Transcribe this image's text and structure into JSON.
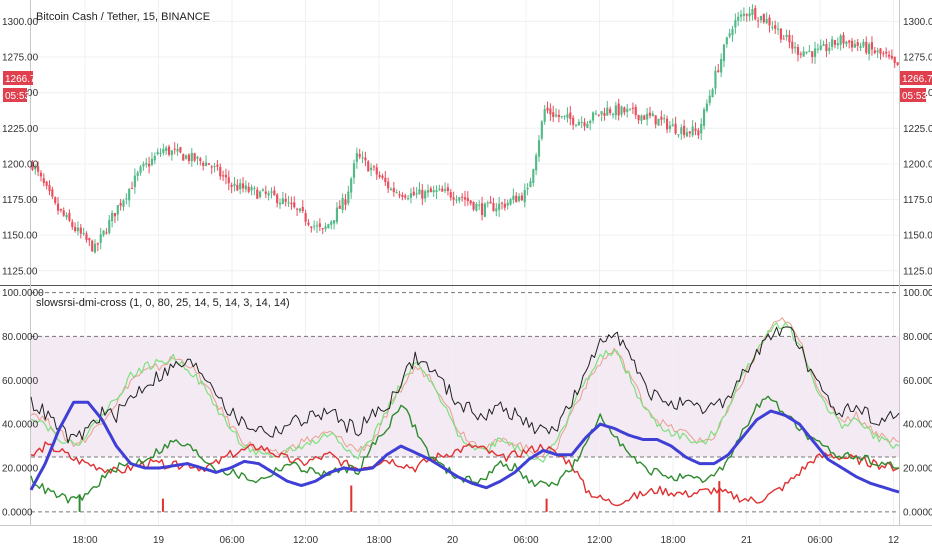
{
  "header": {
    "symbol_title": "Bitcoin Cash / Tether, 15, BINANCE"
  },
  "indicator": {
    "label": "slowsrsi-dmi-cross (1, 0, 80, 25, 14, 5, 14, 3, 14, 14)"
  },
  "price_tag": {
    "price": "1266.70",
    "countdown": "05:53"
  },
  "colors": {
    "up": "#53b987",
    "down": "#eb4d5c",
    "blue": "#3f3fd6",
    "green": "#2e8b2e",
    "red": "#e03030",
    "black": "#222222",
    "light_green": "#7fe07f",
    "light_red": "#e8a090",
    "tag": "#e0404e"
  },
  "time_axis": {
    "labels": [
      "18:00",
      "19",
      "06:00",
      "12:00",
      "18:00",
      "20",
      "06:00",
      "12:00",
      "18:00",
      "21",
      "06:00",
      "12"
    ]
  },
  "chart_data": [
    {
      "type": "candlestick",
      "ylim": [
        1115,
        1315
      ],
      "ticks": [
        "1125.00",
        "1150.00",
        "1175.00",
        "1200.00",
        "1225.00",
        "1250.00",
        "1275.00",
        "1300.00"
      ],
      "tick_values": [
        1125,
        1150,
        1175,
        1200,
        1225,
        1250,
        1275,
        1300
      ],
      "anchors": [
        {
          "t": 0,
          "p": 1200
        },
        {
          "t": 8,
          "p": 1170
        },
        {
          "t": 16,
          "p": 1152
        },
        {
          "t": 22,
          "p": 1140
        },
        {
          "t": 30,
          "p": 1170
        },
        {
          "t": 38,
          "p": 1195
        },
        {
          "t": 46,
          "p": 1210
        },
        {
          "t": 54,
          "p": 1205
        },
        {
          "t": 62,
          "p": 1200
        },
        {
          "t": 70,
          "p": 1185
        },
        {
          "t": 78,
          "p": 1180
        },
        {
          "t": 86,
          "p": 1176
        },
        {
          "t": 94,
          "p": 1165
        },
        {
          "t": 102,
          "p": 1152
        },
        {
          "t": 110,
          "p": 1175
        },
        {
          "t": 114,
          "p": 1205
        },
        {
          "t": 120,
          "p": 1195
        },
        {
          "t": 126,
          "p": 1182
        },
        {
          "t": 134,
          "p": 1178
        },
        {
          "t": 142,
          "p": 1180
        },
        {
          "t": 150,
          "p": 1178
        },
        {
          "t": 158,
          "p": 1168
        },
        {
          "t": 166,
          "p": 1172
        },
        {
          "t": 174,
          "p": 1180
        },
        {
          "t": 180,
          "p": 1238
        },
        {
          "t": 186,
          "p": 1232
        },
        {
          "t": 194,
          "p": 1230
        },
        {
          "t": 202,
          "p": 1238
        },
        {
          "t": 210,
          "p": 1236
        },
        {
          "t": 218,
          "p": 1232
        },
        {
          "t": 226,
          "p": 1225
        },
        {
          "t": 234,
          "p": 1222
        },
        {
          "t": 240,
          "p": 1262
        },
        {
          "t": 246,
          "p": 1298
        },
        {
          "t": 252,
          "p": 1308
        },
        {
          "t": 260,
          "p": 1298
        },
        {
          "t": 268,
          "p": 1280
        },
        {
          "t": 276,
          "p": 1278
        },
        {
          "t": 284,
          "p": 1287
        },
        {
          "t": 292,
          "p": 1282
        },
        {
          "t": 300,
          "p": 1275
        },
        {
          "t": 304,
          "p": 1266.7
        }
      ]
    },
    {
      "type": "line",
      "ylim": [
        -6,
        103
      ],
      "ticks": [
        "0.0000",
        "20.0000",
        "40.0000",
        "60.0000",
        "80.0000",
        "100.0000"
      ],
      "tick_values": [
        0,
        20,
        40,
        60,
        80,
        100
      ],
      "bands": [
        25,
        80,
        100,
        0
      ],
      "series": [
        {
          "key": "black",
          "values": [
            50,
            45,
            38,
            32,
            38,
            45,
            44,
            52,
            58,
            62,
            66,
            68,
            64,
            56,
            45,
            40,
            38,
            36,
            40,
            42,
            44,
            46,
            40,
            38,
            44,
            48,
            60,
            70,
            66,
            58,
            50,
            46,
            44,
            48,
            44,
            40,
            36,
            40,
            50,
            62,
            78,
            84,
            72,
            58,
            52,
            50,
            48,
            46,
            48,
            52,
            62,
            72,
            80,
            86,
            76,
            60,
            50,
            46,
            48,
            44,
            42,
            45
          ]
        },
        {
          "key": "light_green",
          "values": [
            44,
            40,
            34,
            30,
            36,
            44,
            52,
            62,
            66,
            68,
            70,
            66,
            58,
            48,
            38,
            30,
            26,
            24,
            28,
            30,
            32,
            36,
            30,
            26,
            34,
            46,
            58,
            68,
            60,
            48,
            36,
            30,
            28,
            34,
            30,
            26,
            24,
            32,
            48,
            60,
            70,
            74,
            62,
            48,
            40,
            36,
            34,
            30,
            36,
            48,
            62,
            74,
            84,
            86,
            76,
            60,
            46,
            40,
            42,
            36,
            32,
            30
          ]
        },
        {
          "key": "light_red",
          "values": [
            46,
            42,
            36,
            31,
            34,
            42,
            50,
            60,
            64,
            66,
            70,
            68,
            60,
            50,
            40,
            32,
            28,
            26,
            28,
            32,
            34,
            36,
            32,
            28,
            32,
            44,
            56,
            66,
            62,
            52,
            38,
            32,
            30,
            32,
            32,
            28,
            26,
            30,
            46,
            58,
            68,
            74,
            64,
            50,
            42,
            38,
            36,
            32,
            34,
            46,
            60,
            72,
            84,
            88,
            78,
            62,
            48,
            42,
            44,
            38,
            34,
            32
          ]
        },
        {
          "key": "green",
          "values": [
            15,
            10,
            7,
            5,
            8,
            15,
            20,
            22,
            24,
            28,
            32,
            30,
            25,
            20,
            18,
            16,
            14,
            18,
            22,
            20,
            18,
            17,
            20,
            19,
            30,
            38,
            50,
            38,
            26,
            20,
            16,
            14,
            16,
            22,
            20,
            14,
            12,
            14,
            20,
            30,
            44,
            36,
            26,
            20,
            18,
            16,
            15,
            14,
            16,
            24,
            36,
            48,
            52,
            45,
            38,
            32,
            28,
            26,
            25,
            24,
            22,
            20
          ]
        },
        {
          "key": "red",
          "values": [
            25,
            30,
            28,
            24,
            22,
            20,
            18,
            20,
            22,
            22,
            21,
            22,
            20,
            22,
            26,
            28,
            30,
            27,
            24,
            22,
            24,
            26,
            22,
            20,
            22,
            24,
            22,
            20,
            24,
            26,
            28,
            30,
            28,
            24,
            26,
            28,
            30,
            26,
            22,
            10,
            6,
            4,
            6,
            8,
            10,
            9,
            8,
            9,
            10,
            8,
            6,
            5,
            8,
            12,
            18,
            24,
            26,
            25,
            24,
            22,
            21,
            20
          ]
        },
        {
          "key": "blue",
          "values": [
            10,
            22,
            38,
            50,
            50,
            42,
            30,
            22,
            20,
            20,
            21,
            22,
            20,
            18,
            20,
            23,
            22,
            18,
            14,
            12,
            14,
            18,
            20,
            19,
            20,
            26,
            30,
            27,
            24,
            20,
            16,
            13,
            11,
            14,
            18,
            24,
            28,
            26,
            26,
            34,
            40,
            38,
            35,
            33,
            33,
            30,
            25,
            22,
            22,
            26,
            34,
            42,
            46,
            44,
            40,
            32,
            24,
            20,
            16,
            13,
            11,
            9
          ]
        }
      ],
      "spikes": [
        {
          "x": 0.152,
          "top": 6
        },
        {
          "x": 0.369,
          "top": 12
        },
        {
          "x": 0.594,
          "top": 6
        },
        {
          "x": 0.793,
          "top": 14
        }
      ],
      "green_tick": {
        "x": 0.056,
        "top": 8
      }
    }
  ]
}
